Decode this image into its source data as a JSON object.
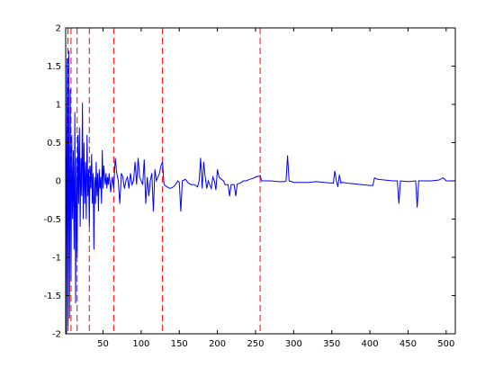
{
  "chart_data": {
    "type": "line",
    "title": "",
    "xlabel": "",
    "ylabel": "",
    "xlim": [
      1,
      512
    ],
    "ylim": [
      -2,
      2
    ],
    "grid": false,
    "legend": "none",
    "x_ticks": [
      50,
      100,
      150,
      200,
      250,
      300,
      350,
      400,
      450,
      500
    ],
    "y_ticks": [
      -2,
      -1.5,
      -1,
      -0.5,
      0,
      0.5,
      1,
      1.5,
      2
    ],
    "vertical_lines": {
      "color": "#ff0000",
      "style": "dashed",
      "x": [
        4,
        8,
        16,
        32,
        64,
        128,
        256
      ]
    },
    "series": [
      {
        "color": "#0000ff",
        "points": [
          [
            1,
            2.0
          ],
          [
            2,
            -2.0
          ],
          [
            3,
            1.6
          ],
          [
            4,
            -1.9
          ],
          [
            5,
            1.7
          ],
          [
            6,
            -1.8
          ],
          [
            7,
            1.2
          ],
          [
            8,
            -1.3
          ],
          [
            9,
            0.6
          ],
          [
            10,
            -0.5
          ],
          [
            11,
            0.4
          ],
          [
            12,
            -0.9
          ],
          [
            13,
            0.9
          ],
          [
            14,
            -1.6
          ],
          [
            15,
            0.3
          ],
          [
            16,
            -1.0
          ],
          [
            17,
            0.6
          ],
          [
            18,
            -0.3
          ],
          [
            19,
            0.7
          ],
          [
            20,
            -0.6
          ],
          [
            21,
            0.3
          ],
          [
            22,
            -0.2
          ],
          [
            23,
            1.02
          ],
          [
            24,
            -0.5
          ],
          [
            25,
            0.5
          ],
          [
            26,
            -0.3
          ],
          [
            27,
            0.25
          ],
          [
            28,
            -0.5
          ],
          [
            29,
            0.6
          ],
          [
            30,
            -0.2
          ],
          [
            31,
            0.15
          ],
          [
            32,
            -0.6
          ],
          [
            33,
            0.2
          ],
          [
            34,
            -0.1
          ],
          [
            35,
            0.35
          ],
          [
            36,
            -0.3
          ],
          [
            37,
            0.1
          ],
          [
            38,
            -0.9
          ],
          [
            39,
            0.05
          ],
          [
            40,
            -0.3
          ],
          [
            41,
            0.25
          ],
          [
            42,
            -0.2
          ],
          [
            43,
            0.1
          ],
          [
            44,
            -0.4
          ],
          [
            45,
            0.15
          ],
          [
            46,
            -0.1
          ],
          [
            47,
            0.05
          ],
          [
            48,
            -0.3
          ],
          [
            49,
            0.4
          ],
          [
            50,
            -0.1
          ],
          [
            51,
            0.2
          ],
          [
            52,
            0.05
          ],
          [
            53,
            -0.05
          ],
          [
            54,
            0.1
          ],
          [
            55,
            -0.1
          ],
          [
            56,
            0.05
          ],
          [
            57,
            -0.05
          ],
          [
            58,
            0.1
          ],
          [
            59,
            0.0
          ],
          [
            60,
            -0.15
          ],
          [
            62,
            0.05
          ],
          [
            64,
            -0.1
          ],
          [
            66,
            0.3
          ],
          [
            68,
            0.1
          ],
          [
            70,
            0.0
          ],
          [
            72,
            -0.3
          ],
          [
            74,
            0.1
          ],
          [
            76,
            0.05
          ],
          [
            78,
            -0.1
          ],
          [
            80,
            0.0
          ],
          [
            82,
            0.05
          ],
          [
            84,
            -0.1
          ],
          [
            86,
            0.1
          ],
          [
            88,
            -0.05
          ],
          [
            90,
            0.0
          ],
          [
            92,
            0.25
          ],
          [
            94,
            -0.05
          ],
          [
            96,
            0.3
          ],
          [
            98,
            0.05
          ],
          [
            100,
            0.0
          ],
          [
            102,
            -0.05
          ],
          [
            104,
            0.28
          ],
          [
            106,
            -0.3
          ],
          [
            108,
            0.05
          ],
          [
            110,
            -0.2
          ],
          [
            112,
            0.0
          ],
          [
            114,
            0.1
          ],
          [
            116,
            -0.4
          ],
          [
            118,
            0.15
          ],
          [
            120,
            0.0
          ],
          [
            122,
            0.05
          ],
          [
            124,
            0.1
          ],
          [
            126,
            0.2
          ],
          [
            128,
            0.25
          ],
          [
            130,
            -0.05
          ],
          [
            134,
            -0.08
          ],
          [
            138,
            -0.1
          ],
          [
            142,
            -0.08
          ],
          [
            145,
            -0.05
          ],
          [
            148,
            0.0
          ],
          [
            150,
            -0.02
          ],
          [
            152,
            -0.4
          ],
          [
            154,
            0.0
          ],
          [
            158,
            0.02
          ],
          [
            162,
            -0.03
          ],
          [
            166,
            -0.05
          ],
          [
            170,
            -0.05
          ],
          [
            174,
            -0.08
          ],
          [
            176,
            0.0
          ],
          [
            178,
            0.3
          ],
          [
            180,
            -0.1
          ],
          [
            182,
            0.25
          ],
          [
            184,
            0.05
          ],
          [
            186,
            -0.1
          ],
          [
            188,
            0.0
          ],
          [
            190,
            -0.05
          ],
          [
            192,
            -0.1
          ],
          [
            194,
            0.05
          ],
          [
            196,
            0.0
          ],
          [
            198,
            -0.12
          ],
          [
            200,
            0.15
          ],
          [
            202,
            0.05
          ],
          [
            204,
            0.03
          ],
          [
            208,
            0.0
          ],
          [
            210,
            -0.05
          ],
          [
            214,
            -0.05
          ],
          [
            216,
            -0.2
          ],
          [
            218,
            -0.05
          ],
          [
            220,
            -0.05
          ],
          [
            222,
            -0.05
          ],
          [
            224,
            -0.2
          ],
          [
            226,
            -0.04
          ],
          [
            230,
            -0.03
          ],
          [
            234,
            0.0
          ],
          [
            238,
            0.0
          ],
          [
            242,
            0.02
          ],
          [
            246,
            0.03
          ],
          [
            250,
            0.05
          ],
          [
            254,
            0.06
          ],
          [
            256,
            0.07
          ],
          [
            258,
            0.0
          ],
          [
            262,
            0.0
          ],
          [
            270,
            0.0
          ],
          [
            280,
            -0.01
          ],
          [
            288,
            -0.01
          ],
          [
            290,
            0.0
          ],
          [
            292,
            0.33
          ],
          [
            294,
            0.0
          ],
          [
            300,
            -0.02
          ],
          [
            310,
            -0.02
          ],
          [
            320,
            -0.02
          ],
          [
            330,
            -0.01
          ],
          [
            340,
            -0.02
          ],
          [
            350,
            -0.03
          ],
          [
            352,
            -0.03
          ],
          [
            354,
            0.13
          ],
          [
            356,
            0.0
          ],
          [
            358,
            -0.08
          ],
          [
            360,
            0.08
          ],
          [
            362,
            -0.03
          ],
          [
            364,
            -0.02
          ],
          [
            370,
            -0.03
          ],
          [
            380,
            -0.04
          ],
          [
            390,
            -0.05
          ],
          [
            400,
            -0.06
          ],
          [
            404,
            -0.06
          ],
          [
            406,
            0.04
          ],
          [
            410,
            0.02
          ],
          [
            420,
            0.01
          ],
          [
            430,
            0.0
          ],
          [
            436,
            0.0
          ],
          [
            438,
            -0.3
          ],
          [
            440,
            0.0
          ],
          [
            450,
            -0.01
          ],
          [
            460,
            0.0
          ],
          [
            462,
            -0.35
          ],
          [
            464,
            0.0
          ],
          [
            470,
            0.0
          ],
          [
            480,
            0.0
          ],
          [
            490,
            0.01
          ],
          [
            496,
            0.04
          ],
          [
            500,
            0.0
          ],
          [
            512,
            0.0
          ]
        ]
      }
    ]
  }
}
